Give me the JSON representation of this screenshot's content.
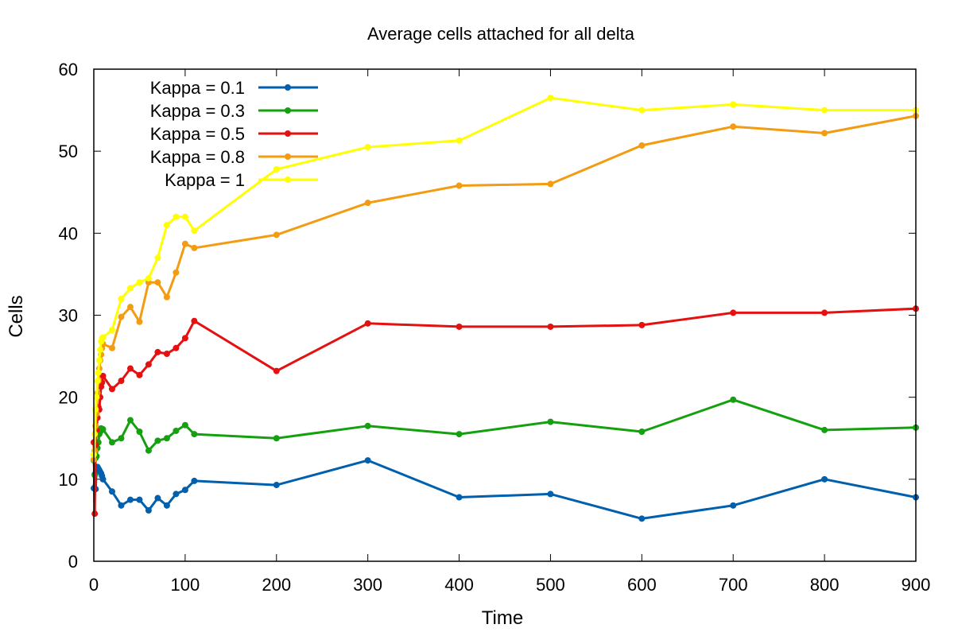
{
  "chart_data": {
    "type": "line",
    "title": "Average cells attached for all delta",
    "xlabel": "Time",
    "ylabel": "Cells",
    "xlim": [
      0,
      900
    ],
    "ylim": [
      0,
      60
    ],
    "xticks": [
      0,
      100,
      200,
      300,
      400,
      500,
      600,
      700,
      800,
      900
    ],
    "yticks": [
      0,
      10,
      20,
      30,
      40,
      50,
      60
    ],
    "legend_position": "top-left",
    "grid": false,
    "series": [
      {
        "name": "Kappa = 0.1",
        "color": "#0060ad",
        "x": [
          0,
          1,
          2,
          3,
          4,
          5,
          6,
          7,
          8,
          9,
          10,
          20,
          30,
          40,
          50,
          60,
          70,
          80,
          90,
          100,
          110,
          200,
          300,
          400,
          500,
          600,
          700,
          800,
          900
        ],
        "y": [
          8.9,
          10.6,
          8.8,
          11.2,
          11.5,
          11.3,
          11.1,
          10.9,
          10.7,
          10.4,
          10.0,
          8.5,
          6.8,
          7.5,
          7.5,
          6.2,
          7.7,
          6.8,
          8.2,
          8.7,
          9.8,
          9.3,
          12.3,
          7.8,
          8.2,
          5.2,
          6.8,
          10.0,
          7.8
        ]
      },
      {
        "name": "Kappa = 0.3",
        "color": "#14a00f",
        "x": [
          0,
          1,
          2,
          3,
          4,
          5,
          6,
          7,
          8,
          9,
          10,
          20,
          30,
          40,
          50,
          60,
          70,
          80,
          90,
          100,
          110,
          200,
          300,
          400,
          500,
          600,
          700,
          800,
          900
        ],
        "y": [
          12.3,
          10.5,
          12.6,
          12.8,
          13.8,
          14.5,
          15.5,
          15.8,
          16.2,
          16.0,
          16.1,
          14.5,
          15.0,
          17.2,
          15.8,
          13.5,
          14.7,
          15.0,
          15.9,
          16.6,
          15.5,
          15.0,
          16.5,
          15.5,
          17.0,
          15.8,
          19.7,
          16.0,
          16.3
        ]
      },
      {
        "name": "Kappa = 0.5",
        "color": "#e51010",
        "x": [
          0,
          1,
          2,
          3,
          4,
          5,
          6,
          7,
          8,
          9,
          10,
          20,
          30,
          40,
          50,
          60,
          70,
          80,
          90,
          100,
          110,
          200,
          300,
          400,
          500,
          600,
          700,
          800,
          900
        ],
        "y": [
          14.5,
          5.8,
          14.2,
          16.0,
          17.5,
          18.8,
          18.5,
          20.0,
          21.3,
          21.8,
          22.6,
          21.0,
          22.0,
          23.5,
          22.7,
          24.0,
          25.5,
          25.3,
          26.0,
          27.2,
          29.3,
          23.2,
          29.0,
          28.6,
          28.6,
          28.8,
          30.3,
          30.3,
          30.8
        ]
      },
      {
        "name": "Kappa = 0.8",
        "color": "#f39c12",
        "x": [
          0,
          1,
          2,
          3,
          4,
          5,
          6,
          7,
          8,
          9,
          10,
          20,
          30,
          40,
          50,
          60,
          70,
          80,
          90,
          100,
          110,
          200,
          300,
          400,
          500,
          600,
          700,
          800,
          900
        ],
        "y": [
          12.4,
          13.5,
          16.5,
          18.0,
          20.5,
          22.0,
          23.5,
          24.5,
          25.2,
          26.0,
          26.5,
          26.0,
          29.8,
          31.0,
          29.2,
          34.0,
          34.0,
          32.2,
          35.2,
          38.7,
          38.2,
          39.8,
          43.7,
          45.8,
          46.0,
          50.7,
          53.0,
          52.2,
          54.3
        ]
      },
      {
        "name": "Kappa = 1",
        "color": "#ffff00",
        "x": [
          0,
          1,
          2,
          3,
          4,
          5,
          6,
          7,
          8,
          9,
          10,
          20,
          30,
          40,
          50,
          60,
          70,
          80,
          90,
          100,
          110,
          200,
          300,
          400,
          500,
          600,
          700,
          800,
          900
        ],
        "y": [
          13.0,
          15.5,
          18.5,
          20.0,
          22.0,
          23.0,
          24.5,
          25.8,
          26.8,
          27.2,
          27.3,
          28.2,
          32.0,
          33.3,
          34.0,
          34.5,
          37.0,
          41.0,
          42.0,
          42.0,
          40.3,
          47.8,
          50.5,
          51.3,
          56.5,
          55.0,
          55.7,
          55.0,
          55.0
        ]
      }
    ]
  }
}
